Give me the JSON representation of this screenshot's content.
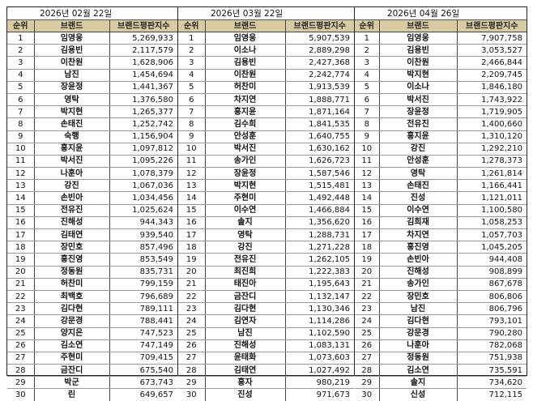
{
  "columns": {
    "rank": "순위",
    "brand": "브랜드",
    "score": "브랜드평판지수"
  },
  "tables": [
    {
      "date": "2026년 02월 22일",
      "rows": [
        {
          "rank": "1",
          "brand": "임영웅",
          "score": "5,269,933"
        },
        {
          "rank": "2",
          "brand": "김용빈",
          "score": "2,117,579"
        },
        {
          "rank": "3",
          "brand": "이찬원",
          "score": "1,628,906"
        },
        {
          "rank": "4",
          "brand": "남진",
          "score": "1,454,694"
        },
        {
          "rank": "5",
          "brand": "장윤정",
          "score": "1,441,367"
        },
        {
          "rank": "6",
          "brand": "영탁",
          "score": "1,376,580"
        },
        {
          "rank": "7",
          "brand": "박지현",
          "score": "1,265,377"
        },
        {
          "rank": "8",
          "brand": "손태진",
          "score": "1,252,742"
        },
        {
          "rank": "9",
          "brand": "숙행",
          "score": "1,156,904"
        },
        {
          "rank": "10",
          "brand": "홍지윤",
          "score": "1,097,812"
        },
        {
          "rank": "11",
          "brand": "박서진",
          "score": "1,095,226"
        },
        {
          "rank": "12",
          "brand": "나훈아",
          "score": "1,078,379"
        },
        {
          "rank": "13",
          "brand": "강진",
          "score": "1,067,036"
        },
        {
          "rank": "14",
          "brand": "손빈아",
          "score": "1,034,456"
        },
        {
          "rank": "15",
          "brand": "전유진",
          "score": "1,025,624"
        },
        {
          "rank": "16",
          "brand": "진해성",
          "score": "944,343"
        },
        {
          "rank": "17",
          "brand": "김태연",
          "score": "939,540"
        },
        {
          "rank": "18",
          "brand": "장민호",
          "score": "857,496"
        },
        {
          "rank": "19",
          "brand": "홍진영",
          "score": "853,549"
        },
        {
          "rank": "20",
          "brand": "정동원",
          "score": "835,731"
        },
        {
          "rank": "21",
          "brand": "허찬미",
          "score": "799,159"
        },
        {
          "rank": "22",
          "brand": "최백호",
          "score": "796,689"
        },
        {
          "rank": "23",
          "brand": "김다현",
          "score": "789,111"
        },
        {
          "rank": "24",
          "brand": "강문경",
          "score": "788,441"
        },
        {
          "rank": "25",
          "brand": "양지은",
          "score": "747,523"
        },
        {
          "rank": "26",
          "brand": "김소연",
          "score": "747,149"
        },
        {
          "rank": "27",
          "brand": "주현미",
          "score": "709,415"
        },
        {
          "rank": "28",
          "brand": "금잔디",
          "score": "675,540"
        },
        {
          "rank": "29",
          "brand": "박군",
          "score": "673,743"
        },
        {
          "rank": "30",
          "brand": "린",
          "score": "649,657"
        }
      ]
    },
    {
      "date": "2026년 03월 22일",
      "rows": [
        {
          "rank": "1",
          "brand": "임영웅",
          "score": "5,907,539"
        },
        {
          "rank": "2",
          "brand": "이소나",
          "score": "2,889,298"
        },
        {
          "rank": "3",
          "brand": "김용빈",
          "score": "2,427,368"
        },
        {
          "rank": "4",
          "brand": "이찬원",
          "score": "2,242,774"
        },
        {
          "rank": "5",
          "brand": "허찬미",
          "score": "1,913,539"
        },
        {
          "rank": "6",
          "brand": "차지연",
          "score": "1,888,771"
        },
        {
          "rank": "7",
          "brand": "홍지윤",
          "score": "1,871,164"
        },
        {
          "rank": "8",
          "brand": "김수희",
          "score": "1,841,535"
        },
        {
          "rank": "9",
          "brand": "안성훈",
          "score": "1,640,755"
        },
        {
          "rank": "10",
          "brand": "박서진",
          "score": "1,630,162"
        },
        {
          "rank": "11",
          "brand": "송가인",
          "score": "1,626,723"
        },
        {
          "rank": "12",
          "brand": "장윤정",
          "score": "1,587,546"
        },
        {
          "rank": "13",
          "brand": "박지현",
          "score": "1,515,481"
        },
        {
          "rank": "14",
          "brand": "주현미",
          "score": "1,492,448"
        },
        {
          "rank": "15",
          "brand": "이수연",
          "score": "1,466,884"
        },
        {
          "rank": "16",
          "brand": "솔지",
          "score": "1,356,620"
        },
        {
          "rank": "17",
          "brand": "영탁",
          "score": "1,288,731"
        },
        {
          "rank": "18",
          "brand": "강진",
          "score": "1,271,228"
        },
        {
          "rank": "19",
          "brand": "전유진",
          "score": "1,262,105"
        },
        {
          "rank": "20",
          "brand": "최진희",
          "score": "1,222,383"
        },
        {
          "rank": "21",
          "brand": "태진아",
          "score": "1,195,643"
        },
        {
          "rank": "22",
          "brand": "금잔디",
          "score": "1,132,147"
        },
        {
          "rank": "23",
          "brand": "김다현",
          "score": "1,130,346"
        },
        {
          "rank": "24",
          "brand": "김연자",
          "score": "1,114,286"
        },
        {
          "rank": "25",
          "brand": "남진",
          "score": "1,102,590"
        },
        {
          "rank": "26",
          "brand": "진해성",
          "score": "1,083,131"
        },
        {
          "rank": "27",
          "brand": "윤태화",
          "score": "1,073,603"
        },
        {
          "rank": "28",
          "brand": "김태연",
          "score": "1,027,492"
        },
        {
          "rank": "29",
          "brand": "홍자",
          "score": "980,219"
        },
        {
          "rank": "30",
          "brand": "진성",
          "score": "971,673"
        }
      ]
    },
    {
      "date": "2026년 04월 26일",
      "rows": [
        {
          "rank": "1",
          "brand": "임영웅",
          "score": "7,907,758"
        },
        {
          "rank": "2",
          "brand": "김용빈",
          "score": "3,053,527"
        },
        {
          "rank": "3",
          "brand": "이찬원",
          "score": "2,466,844"
        },
        {
          "rank": "4",
          "brand": "박지현",
          "score": "2,209,745"
        },
        {
          "rank": "5",
          "brand": "이소나",
          "score": "1,846,180"
        },
        {
          "rank": "6",
          "brand": "박서진",
          "score": "1,743,922"
        },
        {
          "rank": "7",
          "brand": "장윤정",
          "score": "1,719,905"
        },
        {
          "rank": "8",
          "brand": "전유진",
          "score": "1,400,660"
        },
        {
          "rank": "9",
          "brand": "홍지윤",
          "score": "1,310,120"
        },
        {
          "rank": "10",
          "brand": "강진",
          "score": "1,292,210"
        },
        {
          "rank": "11",
          "brand": "안성훈",
          "score": "1,278,373"
        },
        {
          "rank": "12",
          "brand": "영탁",
          "score": "1,261,814"
        },
        {
          "rank": "13",
          "brand": "손태진",
          "score": "1,166,441"
        },
        {
          "rank": "14",
          "brand": "진성",
          "score": "1,121,011"
        },
        {
          "rank": "15",
          "brand": "이수연",
          "score": "1,100,580"
        },
        {
          "rank": "16",
          "brand": "김희재",
          "score": "1,058,253"
        },
        {
          "rank": "17",
          "brand": "차지연",
          "score": "1,057,703"
        },
        {
          "rank": "18",
          "brand": "홍진영",
          "score": "1,045,205"
        },
        {
          "rank": "19",
          "brand": "손빈아",
          "score": "944,408"
        },
        {
          "rank": "20",
          "brand": "진해성",
          "score": "908,899"
        },
        {
          "rank": "21",
          "brand": "송가인",
          "score": "867,678"
        },
        {
          "rank": "22",
          "brand": "장민호",
          "score": "806,806"
        },
        {
          "rank": "23",
          "brand": "남진",
          "score": "806,796"
        },
        {
          "rank": "24",
          "brand": "김다현",
          "score": "793,101"
        },
        {
          "rank": "25",
          "brand": "강문경",
          "score": "790,280"
        },
        {
          "rank": "26",
          "brand": "나훈아",
          "score": "782,068"
        },
        {
          "rank": "27",
          "brand": "정동원",
          "score": "751,938"
        },
        {
          "rank": "28",
          "brand": "김소연",
          "score": "735,591"
        },
        {
          "rank": "29",
          "brand": "솔지",
          "score": "734,620"
        },
        {
          "rank": "30",
          "brand": "신성",
          "score": "712,115"
        }
      ]
    }
  ],
  "colors": {
    "header_bg": "#d8cba3",
    "border": "#222222",
    "row_divider": "#9a9a9a"
  }
}
